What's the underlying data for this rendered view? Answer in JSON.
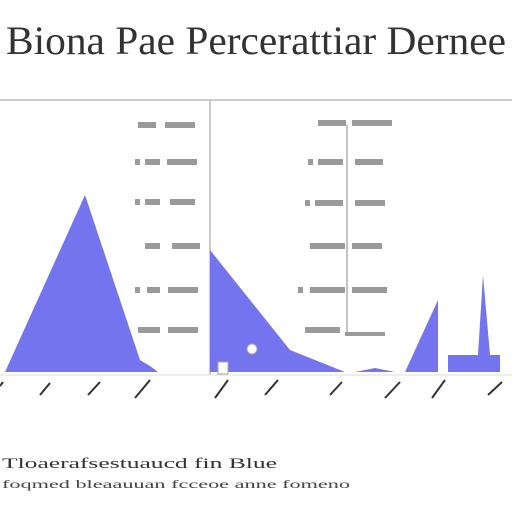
{
  "header": {
    "title": "Biona Pae Percerattiar Dernee"
  },
  "footer": {
    "lines": [
      "Tloaerafsestuaucd fin Blue",
      "foqmed bleaauuan fcceoe anne fomeno"
    ]
  }
}
